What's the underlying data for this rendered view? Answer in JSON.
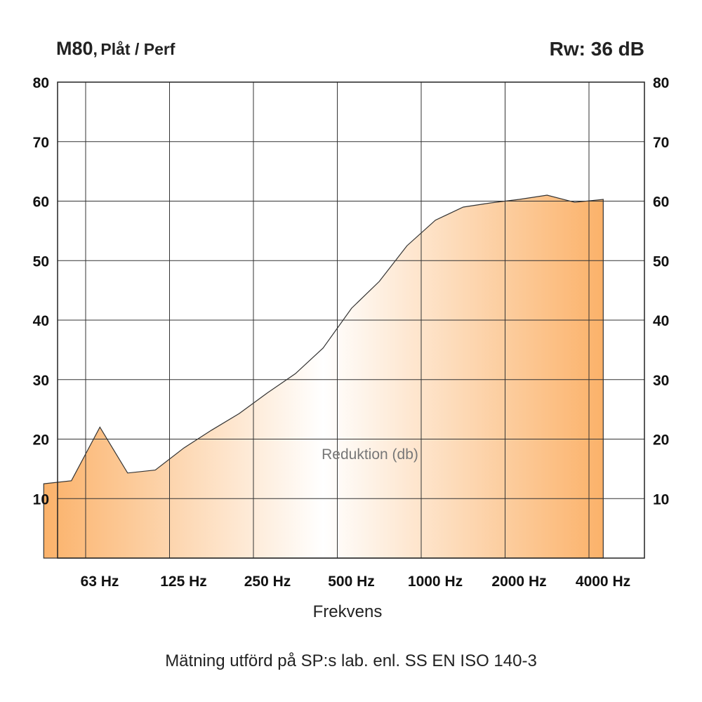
{
  "header": {
    "model": "M80",
    "sep": ",",
    "variant": "Plåt / Perf",
    "rating": "Rw: 36 dB"
  },
  "footer": {
    "note": "Mätning utförd på SP:s lab. enl. SS EN ISO 140-3"
  },
  "chart_data": {
    "type": "area",
    "title": "",
    "xlabel": "Frekvens",
    "ylabel": "",
    "annotation": "Reduktion (db)",
    "categories": [
      "63 Hz",
      "125 Hz",
      "250 Hz",
      "500 Hz",
      "1000 Hz",
      "2000 Hz",
      "4000 Hz"
    ],
    "ylim": [
      0,
      80
    ],
    "yticks": [
      10,
      20,
      30,
      40,
      50,
      60,
      70,
      80
    ],
    "grid": true,
    "fill_colors": [
      "#fbb26a",
      "#ffffff",
      "#fbb26a"
    ],
    "stroke_color": "#333333",
    "points": [
      {
        "octave": -0.5,
        "value": 12.5
      },
      {
        "octave": -0.17,
        "value": 13.0
      },
      {
        "octave": 0.17,
        "value": 22.0
      },
      {
        "octave": 0.5,
        "value": 14.3
      },
      {
        "octave": 0.83,
        "value": 14.8
      },
      {
        "octave": 1.17,
        "value": 18.5
      },
      {
        "octave": 1.5,
        "value": 21.5
      },
      {
        "octave": 1.83,
        "value": 24.3
      },
      {
        "octave": 2.17,
        "value": 27.8
      },
      {
        "octave": 2.5,
        "value": 31.0
      },
      {
        "octave": 2.83,
        "value": 35.3
      },
      {
        "octave": 3.17,
        "value": 42.0
      },
      {
        "octave": 3.5,
        "value": 46.5
      },
      {
        "octave": 3.83,
        "value": 52.5
      },
      {
        "octave": 4.17,
        "value": 56.8
      },
      {
        "octave": 4.5,
        "value": 59.0
      },
      {
        "octave": 4.83,
        "value": 59.7
      },
      {
        "octave": 5.17,
        "value": 60.3
      },
      {
        "octave": 5.5,
        "value": 61.0
      },
      {
        "octave": 5.83,
        "value": 59.8
      },
      {
        "octave": 6.17,
        "value": 60.3
      }
    ]
  }
}
